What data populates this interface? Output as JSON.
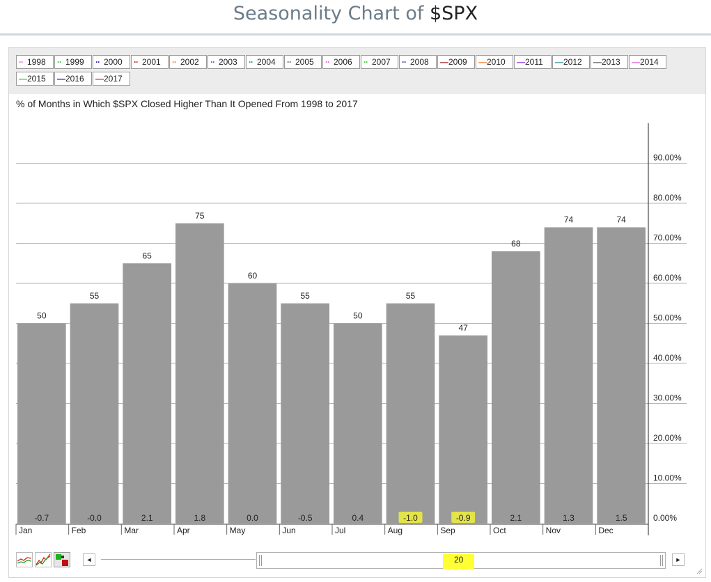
{
  "page": {
    "title_prefix": "Seasonality Chart of ",
    "title_symbol": "$SPX"
  },
  "legend": [
    {
      "label": "1998",
      "color": "#e05ad8",
      "style": "dotted"
    },
    {
      "label": "1999",
      "color": "#32c832",
      "style": "dotted"
    },
    {
      "label": "2000",
      "color": "#1a1aa0",
      "style": "dotted"
    },
    {
      "label": "2001",
      "color": "#a01a1a",
      "style": "dotted"
    },
    {
      "label": "2002",
      "color": "#f07a2a",
      "style": "dotted"
    },
    {
      "label": "2003",
      "color": "#8a2ae0",
      "style": "dotted"
    },
    {
      "label": "2004",
      "color": "#2a8a8a",
      "style": "dotted"
    },
    {
      "label": "2005",
      "color": "#555555",
      "style": "dotted"
    },
    {
      "label": "2006",
      "color": "#e05ad8",
      "style": "dotted"
    },
    {
      "label": "2007",
      "color": "#32c832",
      "style": "dotted"
    },
    {
      "label": "2008",
      "color": "#1a1aa0",
      "style": "dotted"
    },
    {
      "label": "2009",
      "color": "#a01a1a",
      "style": "solid"
    },
    {
      "label": "2010",
      "color": "#f07a2a",
      "style": "solid"
    },
    {
      "label": "2011",
      "color": "#8a2ae0",
      "style": "solid"
    },
    {
      "label": "2012",
      "color": "#2a8a8a",
      "style": "solid"
    },
    {
      "label": "2013",
      "color": "#555555",
      "style": "solid"
    },
    {
      "label": "2014",
      "color": "#e05ad8",
      "style": "solid"
    },
    {
      "label": "2015",
      "color": "#32c832",
      "style": "solid"
    },
    {
      "label": "2016",
      "color": "#1a1aa0",
      "style": "solid"
    },
    {
      "label": "2017",
      "color": "#e02020",
      "style": "solid"
    }
  ],
  "chart_data": {
    "type": "bar",
    "title": "% of Months in Which $SPX Closed Higher Than It Opened From 1998 to 2017",
    "categories": [
      "Jan",
      "Feb",
      "Mar",
      "Apr",
      "May",
      "Jun",
      "Jul",
      "Aug",
      "Sep",
      "Oct",
      "Nov",
      "Dec"
    ],
    "values": [
      50,
      55,
      65,
      75,
      60,
      55,
      50,
      55,
      47,
      68,
      74,
      74
    ],
    "value_labels": [
      "50",
      "55",
      "65",
      "75",
      "60",
      "55",
      "50",
      "55",
      "47",
      "68",
      "74",
      "74"
    ],
    "avg_returns": [
      "-0.7",
      "-0.0",
      "2.1",
      "1.8",
      "0.0",
      "-0.5",
      "0.4",
      "-1.0",
      "-0.9",
      "2.1",
      "1.3",
      "1.5"
    ],
    "highlighted_returns": [
      "Aug",
      "Sep"
    ],
    "highlight_color": "#e3e34a",
    "bar_color": "#9a9a9a",
    "ylim": [
      0,
      100
    ],
    "y_ticks": [
      "0.00%",
      "10.00%",
      "20.00%",
      "30.00%",
      "40.00%",
      "50.00%",
      "60.00%",
      "70.00%",
      "80.00%",
      "90.00%"
    ],
    "y_axis_side": "right",
    "grid": true,
    "xlabel": "",
    "ylabel": ""
  },
  "controls": {
    "years_value": "20",
    "scroll_left": "◄",
    "scroll_right": "►"
  }
}
